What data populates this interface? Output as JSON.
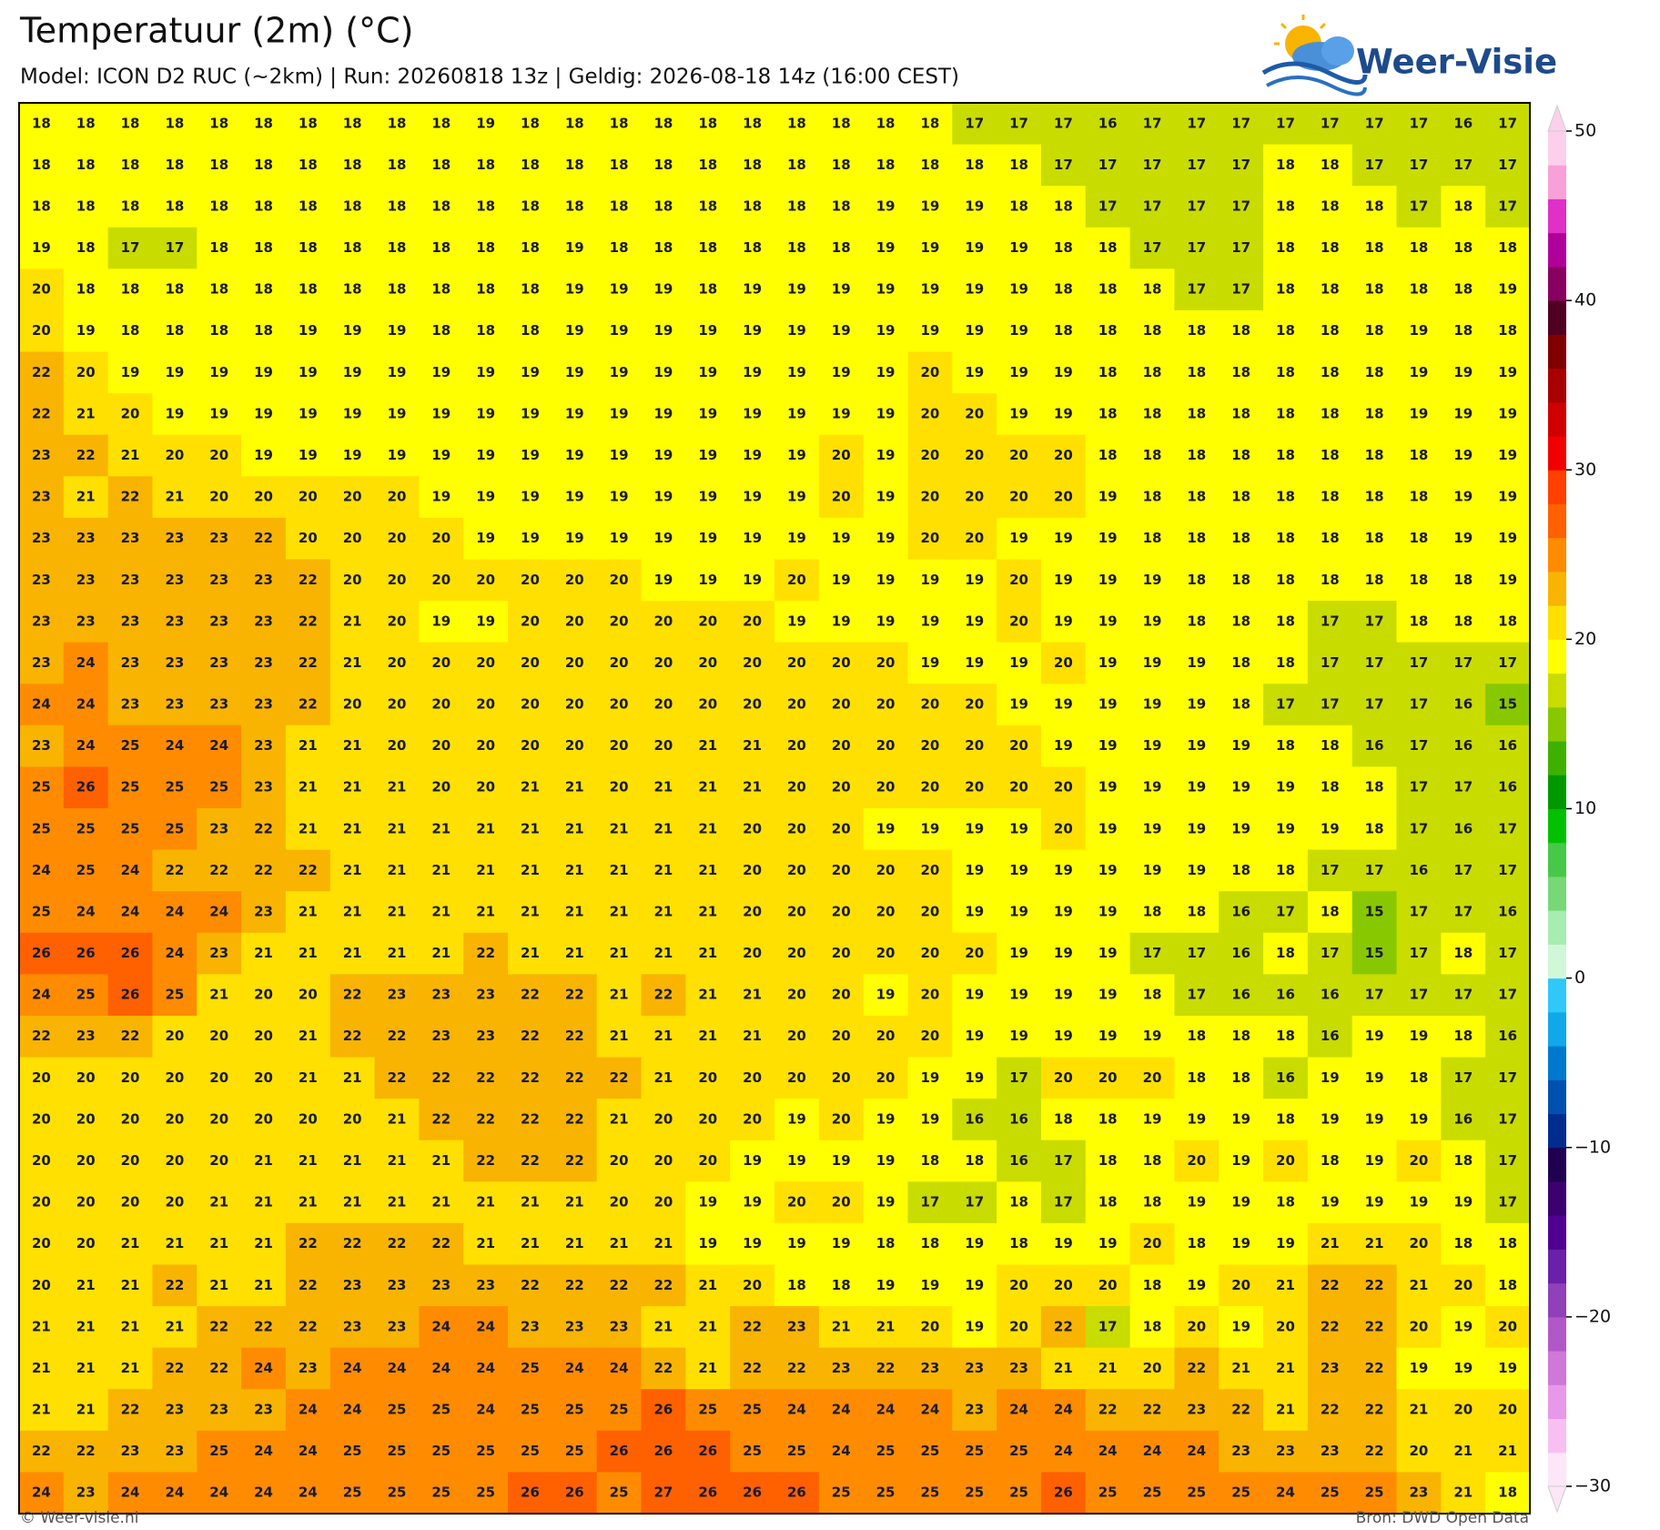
{
  "header": {
    "title": "Temperatuur (2m) (°C)",
    "subtitle": "Model: ICON D2 RUC (~2km)  |  Run: 20260818 13z  |  Geldig: 2026-08-18 14z (16:00 CEST)"
  },
  "logo": "Weer-Visie",
  "colorbar": {
    "lim": [
      -30,
      50
    ],
    "ticks": [
      50,
      40,
      30,
      20,
      10,
      0,
      {
        "value": -10,
        "label": "−10"
      },
      {
        "value": -20,
        "label": "−20"
      },
      {
        "value": -30,
        "label": "−30"
      }
    ],
    "colors": [
      "#fde6f8",
      "#f8c0f0",
      "#e898e8",
      "#d078d8",
      "#b058c8",
      "#9040b8",
      "#6a20a8",
      "#500090",
      "#3a0070",
      "#200050",
      "#002c90",
      "#0050b0",
      "#0078d0",
      "#10a8e8",
      "#30c8f8",
      "#d0f8d8",
      "#a8ecb0",
      "#78d878",
      "#48c848",
      "#00c000",
      "#009800",
      "#40b000",
      "#88c800",
      "#c8dc00",
      "#ffff00",
      "#ffe000",
      "#f8b400",
      "#ff8c00",
      "#ff6000",
      "#ff4000",
      "#f00000",
      "#d00000",
      "#a80000",
      "#800000",
      "#500020",
      "#880060",
      "#b0009a",
      "#e030c8",
      "#f8a0d8",
      "#fcd0ec"
    ]
  },
  "map": {
    "rows": [
      [
        18,
        18,
        18,
        18,
        18,
        18,
        18,
        18,
        18,
        18,
        19,
        18,
        18,
        18,
        18,
        18,
        18,
        18,
        18,
        18,
        18,
        17,
        17,
        17,
        16,
        17,
        17,
        17,
        17,
        17,
        17,
        17,
        16,
        17
      ],
      [
        18,
        18,
        18,
        18,
        18,
        18,
        18,
        18,
        18,
        18,
        18,
        18,
        18,
        18,
        18,
        18,
        18,
        18,
        18,
        18,
        18,
        18,
        18,
        17,
        17,
        17,
        17,
        17,
        18,
        18,
        17,
        17,
        17,
        17
      ],
      [
        18,
        18,
        18,
        18,
        18,
        18,
        18,
        18,
        18,
        18,
        18,
        18,
        18,
        18,
        18,
        18,
        18,
        18,
        18,
        19,
        19,
        19,
        18,
        18,
        17,
        17,
        17,
        17,
        18,
        18,
        18,
        17,
        18,
        17
      ],
      [
        19,
        18,
        17,
        17,
        18,
        18,
        18,
        18,
        18,
        18,
        18,
        18,
        19,
        18,
        18,
        18,
        18,
        18,
        18,
        19,
        19,
        19,
        19,
        18,
        18,
        17,
        17,
        17,
        18,
        18,
        18,
        18,
        18,
        18
      ],
      [
        20,
        18,
        18,
        18,
        18,
        18,
        18,
        18,
        18,
        18,
        18,
        18,
        19,
        19,
        19,
        18,
        19,
        19,
        19,
        19,
        19,
        19,
        19,
        18,
        18,
        18,
        17,
        17,
        18,
        18,
        18,
        18,
        18,
        19
      ],
      [
        20,
        19,
        18,
        18,
        18,
        18,
        19,
        19,
        19,
        18,
        18,
        18,
        19,
        19,
        19,
        19,
        19,
        19,
        19,
        19,
        19,
        19,
        19,
        18,
        18,
        18,
        18,
        18,
        18,
        18,
        18,
        19,
        18,
        18
      ],
      [
        22,
        20,
        19,
        19,
        19,
        19,
        19,
        19,
        19,
        19,
        19,
        19,
        19,
        19,
        19,
        19,
        19,
        19,
        19,
        19,
        20,
        19,
        19,
        19,
        18,
        18,
        18,
        18,
        18,
        18,
        18,
        19,
        19,
        19
      ],
      [
        22,
        21,
        20,
        19,
        19,
        19,
        19,
        19,
        19,
        19,
        19,
        19,
        19,
        19,
        19,
        19,
        19,
        19,
        19,
        19,
        20,
        20,
        19,
        19,
        18,
        18,
        18,
        18,
        18,
        18,
        18,
        19,
        19,
        19
      ],
      [
        23,
        22,
        21,
        20,
        20,
        19,
        19,
        19,
        19,
        19,
        19,
        19,
        19,
        19,
        19,
        19,
        19,
        19,
        20,
        19,
        20,
        20,
        20,
        20,
        18,
        18,
        18,
        18,
        18,
        18,
        18,
        18,
        19,
        19
      ],
      [
        23,
        21,
        22,
        21,
        20,
        20,
        20,
        20,
        20,
        19,
        19,
        19,
        19,
        19,
        19,
        19,
        19,
        19,
        20,
        19,
        20,
        20,
        20,
        20,
        19,
        18,
        18,
        18,
        18,
        18,
        18,
        18,
        19,
        19
      ],
      [
        23,
        23,
        23,
        23,
        23,
        22,
        20,
        20,
        20,
        20,
        19,
        19,
        19,
        19,
        19,
        19,
        19,
        19,
        19,
        19,
        20,
        20,
        19,
        19,
        19,
        18,
        18,
        18,
        18,
        18,
        18,
        18,
        19,
        19
      ],
      [
        23,
        23,
        23,
        23,
        23,
        23,
        22,
        20,
        20,
        20,
        20,
        20,
        20,
        20,
        19,
        19,
        19,
        20,
        19,
        19,
        19,
        19,
        20,
        19,
        19,
        19,
        18,
        18,
        18,
        18,
        18,
        18,
        18,
        19
      ],
      [
        23,
        23,
        23,
        23,
        23,
        23,
        22,
        21,
        20,
        19,
        19,
        20,
        20,
        20,
        20,
        20,
        20,
        19,
        19,
        19,
        19,
        19,
        20,
        19,
        19,
        19,
        18,
        18,
        18,
        17,
        17,
        18,
        18,
        18
      ],
      [
        23,
        24,
        23,
        23,
        23,
        23,
        22,
        21,
        20,
        20,
        20,
        20,
        20,
        20,
        20,
        20,
        20,
        20,
        20,
        20,
        19,
        19,
        19,
        20,
        19,
        19,
        19,
        18,
        18,
        17,
        17,
        17,
        17,
        17
      ],
      [
        24,
        24,
        23,
        23,
        23,
        23,
        22,
        20,
        20,
        20,
        20,
        20,
        20,
        20,
        20,
        20,
        20,
        20,
        20,
        20,
        20,
        20,
        19,
        19,
        19,
        19,
        19,
        18,
        17,
        17,
        17,
        17,
        16,
        15
      ],
      [
        23,
        24,
        25,
        24,
        24,
        23,
        21,
        21,
        20,
        20,
        20,
        20,
        20,
        20,
        20,
        21,
        21,
        20,
        20,
        20,
        20,
        20,
        20,
        19,
        19,
        19,
        19,
        19,
        18,
        18,
        16,
        17,
        16,
        16
      ],
      [
        25,
        26,
        25,
        25,
        25,
        23,
        21,
        21,
        21,
        20,
        20,
        21,
        21,
        20,
        21,
        21,
        21,
        20,
        20,
        20,
        20,
        20,
        20,
        20,
        19,
        19,
        19,
        19,
        19,
        18,
        18,
        17,
        17,
        16
      ],
      [
        25,
        25,
        25,
        25,
        23,
        22,
        21,
        21,
        21,
        21,
        21,
        21,
        21,
        21,
        21,
        21,
        20,
        20,
        20,
        19,
        19,
        19,
        19,
        20,
        19,
        19,
        19,
        19,
        19,
        19,
        18,
        17,
        16,
        17
      ],
      [
        24,
        25,
        24,
        22,
        22,
        22,
        22,
        21,
        21,
        21,
        21,
        21,
        21,
        21,
        21,
        21,
        20,
        20,
        20,
        20,
        20,
        19,
        19,
        19,
        19,
        19,
        19,
        18,
        18,
        17,
        17,
        16,
        17,
        17
      ],
      [
        25,
        24,
        24,
        24,
        24,
        23,
        21,
        21,
        21,
        21,
        21,
        21,
        21,
        21,
        21,
        21,
        20,
        20,
        20,
        20,
        20,
        19,
        19,
        19,
        19,
        18,
        18,
        16,
        17,
        18,
        15,
        17,
        17,
        16
      ],
      [
        26,
        26,
        26,
        24,
        23,
        21,
        21,
        21,
        21,
        21,
        22,
        21,
        21,
        21,
        21,
        21,
        20,
        20,
        20,
        20,
        20,
        20,
        19,
        19,
        19,
        17,
        17,
        16,
        18,
        17,
        15,
        17,
        18,
        17
      ],
      [
        24,
        25,
        26,
        25,
        21,
        20,
        20,
        22,
        23,
        23,
        23,
        22,
        22,
        21,
        22,
        21,
        21,
        20,
        20,
        19,
        20,
        19,
        19,
        19,
        19,
        18,
        17,
        16,
        16,
        16,
        17,
        17,
        17,
        17
      ],
      [
        22,
        23,
        22,
        20,
        20,
        20,
        21,
        22,
        22,
        23,
        23,
        22,
        22,
        21,
        21,
        21,
        21,
        20,
        20,
        20,
        20,
        19,
        19,
        19,
        19,
        19,
        18,
        18,
        18,
        16,
        19,
        19,
        18,
        16
      ],
      [
        20,
        20,
        20,
        20,
        20,
        20,
        21,
        21,
        22,
        22,
        22,
        22,
        22,
        22,
        21,
        20,
        20,
        20,
        20,
        20,
        19,
        19,
        17,
        20,
        20,
        20,
        18,
        18,
        16,
        19,
        19,
        18,
        17,
        17
      ],
      [
        20,
        20,
        20,
        20,
        20,
        20,
        20,
        20,
        21,
        22,
        22,
        22,
        22,
        21,
        20,
        20,
        20,
        19,
        20,
        19,
        19,
        16,
        16,
        18,
        18,
        19,
        19,
        19,
        18,
        19,
        19,
        19,
        16,
        17
      ],
      [
        20,
        20,
        20,
        20,
        20,
        21,
        21,
        21,
        21,
        21,
        22,
        22,
        22,
        20,
        20,
        20,
        19,
        19,
        19,
        19,
        18,
        18,
        16,
        17,
        18,
        18,
        20,
        19,
        20,
        18,
        19,
        20,
        18,
        17
      ],
      [
        20,
        20,
        20,
        20,
        21,
        21,
        21,
        21,
        21,
        21,
        21,
        21,
        21,
        20,
        20,
        19,
        19,
        20,
        20,
        19,
        17,
        17,
        18,
        17,
        18,
        18,
        19,
        19,
        18,
        19,
        19,
        19,
        19,
        17
      ],
      [
        20,
        20,
        21,
        21,
        21,
        21,
        22,
        22,
        22,
        22,
        21,
        21,
        21,
        21,
        21,
        19,
        19,
        19,
        19,
        18,
        18,
        19,
        18,
        19,
        19,
        20,
        18,
        19,
        19,
        21,
        21,
        20,
        18,
        18
      ],
      [
        20,
        21,
        21,
        22,
        21,
        21,
        22,
        23,
        23,
        23,
        23,
        22,
        22,
        22,
        22,
        21,
        20,
        18,
        18,
        19,
        19,
        19,
        20,
        20,
        20,
        18,
        19,
        20,
        21,
        22,
        22,
        21,
        20,
        18
      ],
      [
        21,
        21,
        21,
        21,
        22,
        22,
        22,
        23,
        23,
        24,
        24,
        23,
        23,
        23,
        21,
        21,
        22,
        23,
        21,
        21,
        20,
        19,
        20,
        22,
        17,
        18,
        20,
        19,
        20,
        22,
        22,
        20,
        19,
        20
      ],
      [
        21,
        21,
        21,
        22,
        22,
        24,
        23,
        24,
        24,
        24,
        24,
        25,
        24,
        24,
        22,
        21,
        22,
        22,
        23,
        22,
        23,
        23,
        23,
        21,
        21,
        20,
        22,
        21,
        21,
        23,
        22,
        19,
        19,
        19
      ],
      [
        21,
        21,
        22,
        23,
        23,
        23,
        24,
        24,
        25,
        25,
        24,
        25,
        25,
        25,
        26,
        25,
        25,
        24,
        24,
        24,
        24,
        23,
        24,
        24,
        22,
        22,
        23,
        22,
        21,
        22,
        22,
        21,
        20,
        20
      ],
      [
        22,
        22,
        23,
        23,
        25,
        24,
        24,
        25,
        25,
        25,
        25,
        25,
        25,
        26,
        26,
        26,
        25,
        25,
        24,
        25,
        25,
        25,
        25,
        24,
        24,
        24,
        24,
        23,
        23,
        23,
        22,
        20,
        21,
        21
      ],
      [
        24,
        23,
        24,
        24,
        24,
        24,
        24,
        25,
        25,
        25,
        25,
        26,
        26,
        25,
        27,
        26,
        26,
        26,
        25,
        25,
        25,
        25,
        25,
        26,
        25,
        25,
        25,
        25,
        24,
        25,
        25,
        23,
        21,
        18
      ]
    ]
  },
  "footer": {
    "left": "© Weer-visie.nl",
    "right": "Bron: DWD Open Data"
  }
}
